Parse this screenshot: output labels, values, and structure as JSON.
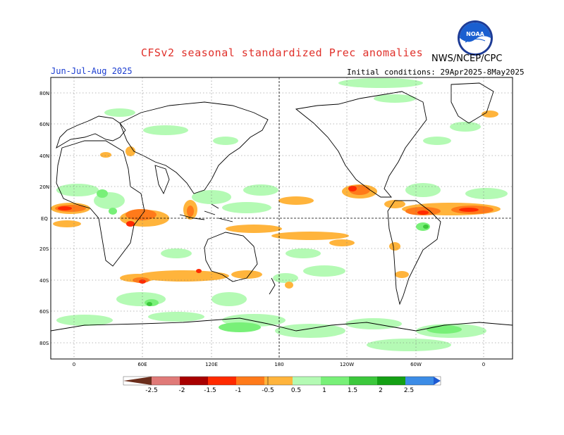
{
  "header": {
    "title": "CFSv2 seasonal standardized Prec anomalies",
    "agency": "NWS/NCEP/CPC",
    "logo_text": "NOAA",
    "season": "Jun-Jul-Aug 2025",
    "initial_conditions": "Initial conditions: 29Apr2025-8May2025"
  },
  "map": {
    "lat_labels": [
      "80N",
      "60N",
      "40N",
      "20N",
      "EQ",
      "20S",
      "40S",
      "60S",
      "80S"
    ],
    "lon_labels": [
      "0",
      "60E",
      "120E",
      "180",
      "120W",
      "60W",
      "0"
    ]
  },
  "colorbar": {
    "labels": [
      "-2.5",
      "-2",
      "-1.5",
      "-1",
      "-0.5",
      "0.5",
      "1",
      "1.5",
      "2",
      "2.5"
    ],
    "colors": [
      "#6b2e1c",
      "#e07a78",
      "#a80000",
      "#ff2a00",
      "#ff7a1a",
      "#ffb43c",
      "#ffffff",
      "#b4fab4",
      "#78f078",
      "#3cc83c",
      "#14a014",
      "#3c8ce6",
      "#1e5ad2"
    ]
  },
  "legend_colors": {
    "dry_strong": "#ff2a00",
    "dry_moderate": "#ff7a1a",
    "dry_weak": "#ffb43c",
    "wet_weak": "#b4fab4",
    "wet_moderate": "#78f078",
    "wet_strong": "#3cc83c"
  }
}
